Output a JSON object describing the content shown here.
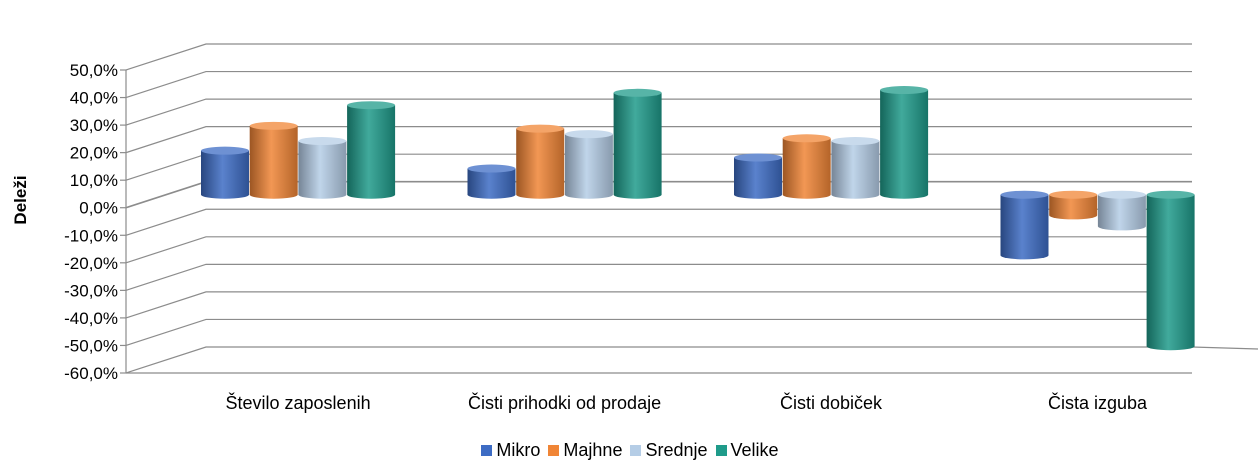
{
  "chart_data": {
    "type": "bar",
    "ylabel": "Deleži",
    "ylim": [
      -60,
      50
    ],
    "ytick_step": 10,
    "ytick_labels": [
      "50,0%",
      "40,0%",
      "30,0%",
      "20,0%",
      "10,0%",
      "0,0%",
      "-10,0%",
      "-20,0%",
      "-30,0%",
      "-40,0%",
      "-50,0%",
      "-60,0%"
    ],
    "categories": [
      "Število zaposlenih",
      "Čisti prihodki od prodaje",
      "Čisti dobiček",
      "Čista izguba"
    ],
    "series": [
      {
        "name": "Mikro",
        "color": "#3d6cc4",
        "values": [
          16.0,
          9.5,
          13.5,
          -22.0
        ]
      },
      {
        "name": "Majhne",
        "color": "#f08536",
        "values": [
          25.0,
          24.0,
          20.5,
          -7.5
        ]
      },
      {
        "name": "Srednje",
        "color": "#b5cde6",
        "values": [
          19.5,
          22.0,
          19.5,
          -11.5
        ]
      },
      {
        "name": "Velike",
        "color": "#1f9b8a",
        "values": [
          32.5,
          37.0,
          38.0,
          -55.0
        ]
      }
    ],
    "grid": true,
    "legend_position": "bottom"
  }
}
